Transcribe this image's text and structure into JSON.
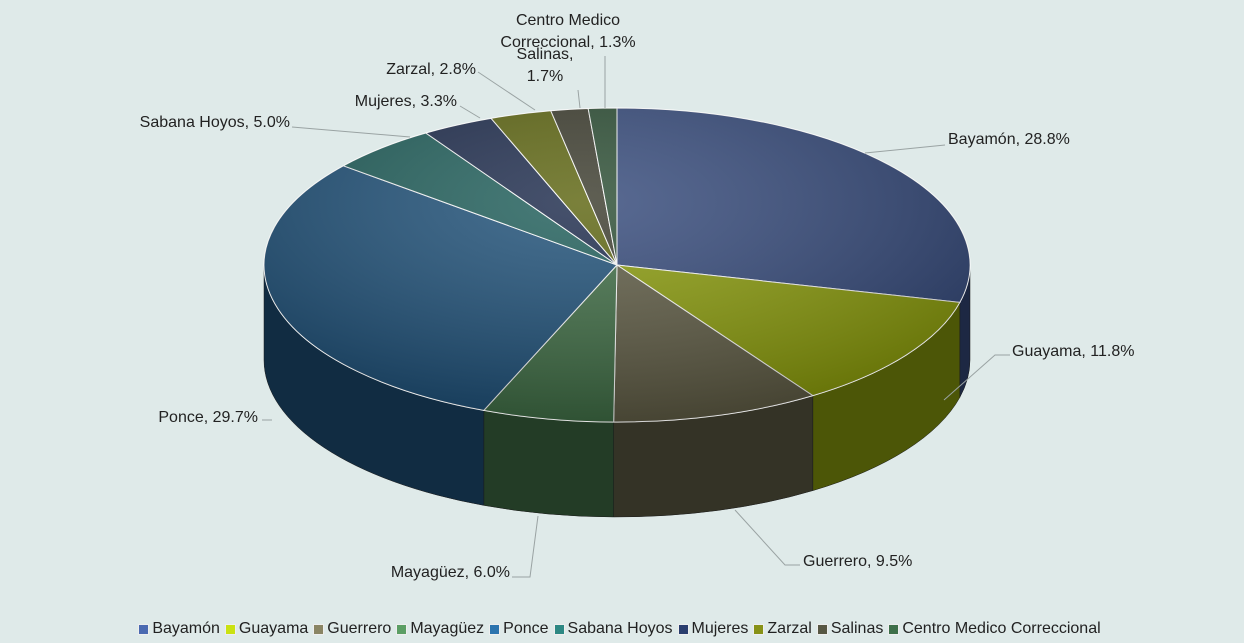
{
  "chart_data": {
    "type": "pie",
    "categories": [
      "Bayamón",
      "Guayama",
      "Guerrero",
      "Mayagüez",
      "Ponce",
      "Sabana Hoyos",
      "Mujeres",
      "Zarzal",
      "Salinas",
      "Centro Medico Correccional"
    ],
    "values": [
      28.8,
      11.8,
      9.5,
      6.0,
      29.7,
      5.0,
      3.3,
      2.8,
      1.7,
      1.3
    ],
    "value_labels": [
      "Bayamón, 28.8%",
      "Guayama, 11.8%",
      "Guerrero, 9.5%",
      "Mayagüez, 6.0%",
      "Ponce, 29.7%",
      "Sabana Hoyos, 5.0%",
      "Mujeres, 3.3%",
      "Zarzal, 2.8%",
      "Salinas, 1.7%",
      "Centro Medico Correccional, 1.3%"
    ],
    "colors": [
      "#34497a",
      "#8b9c0c",
      "#5f5c45",
      "#3f6d45",
      "#1e5078",
      "#1f5e5a",
      "#1d2b4c",
      "#5d6510",
      "#3c3c2e",
      "#2b4d33"
    ],
    "legend": "bottom"
  }
}
